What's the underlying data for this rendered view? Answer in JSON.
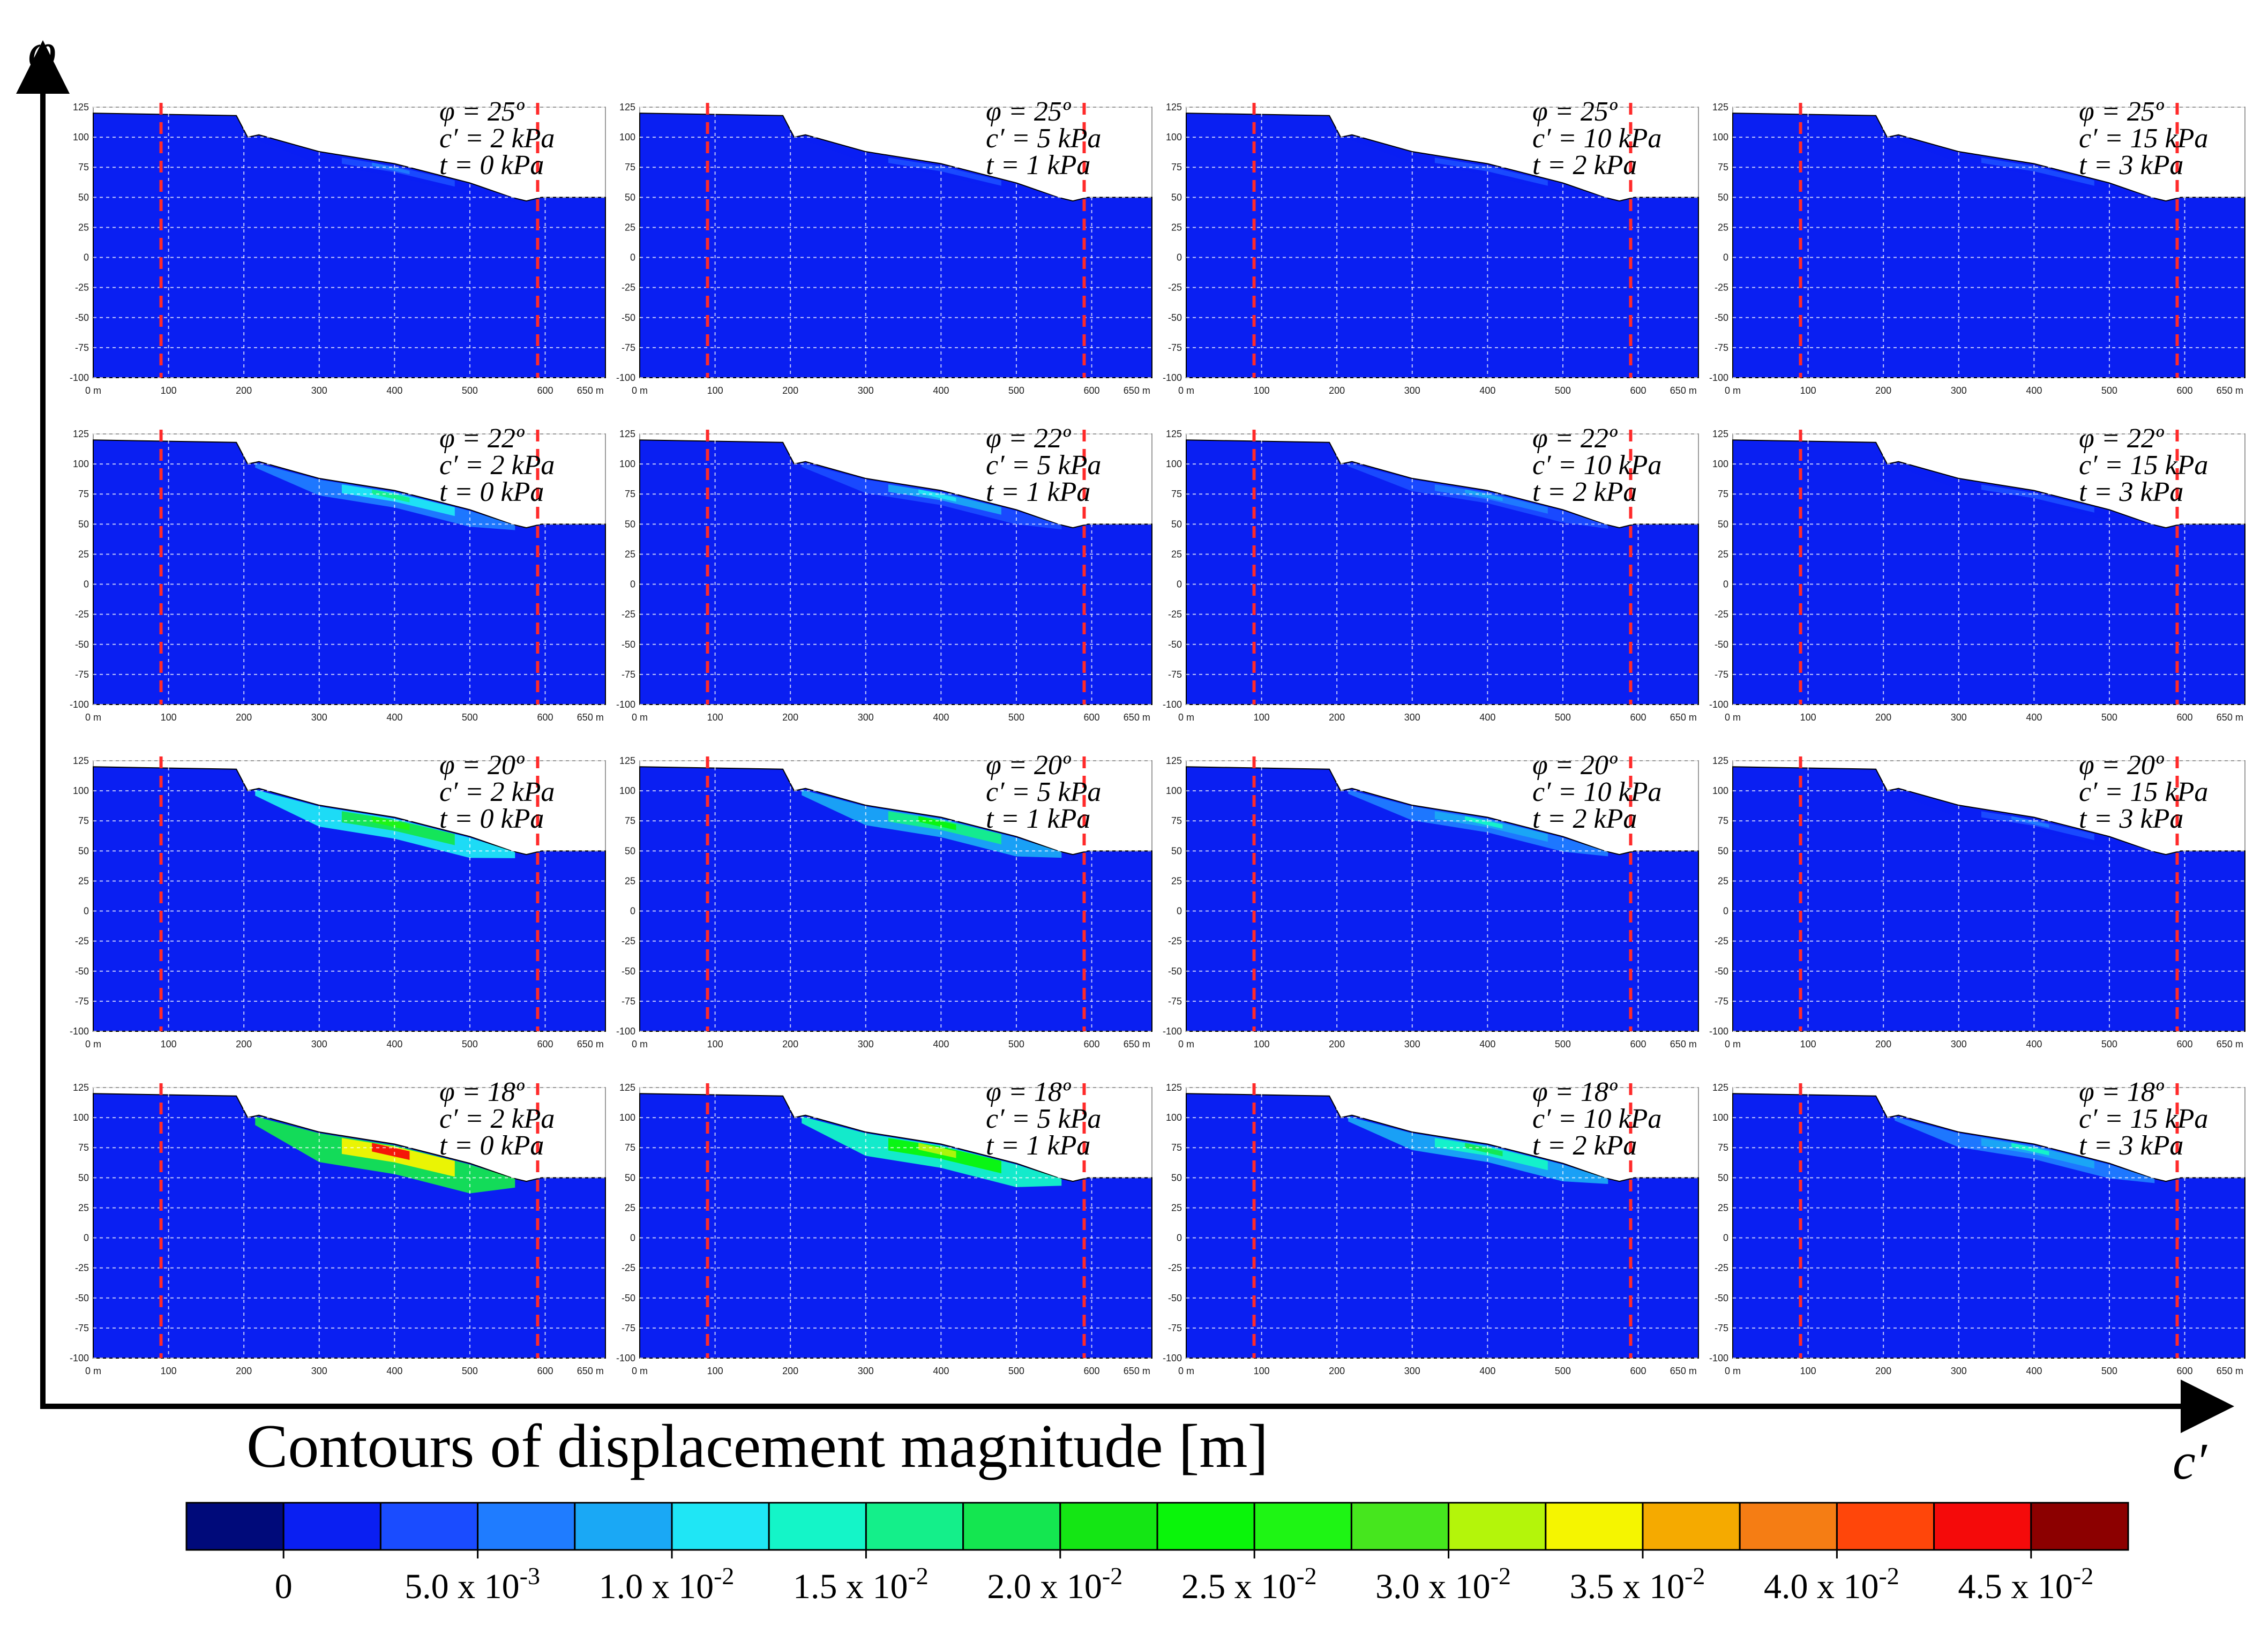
{
  "chart_data": {
    "type": "heatmap",
    "title": "Contours of displacement magnitude [m]",
    "x_axis_label": "c′",
    "y_axis_label": "φ",
    "panel_y_ticks": [
      "125",
      "100",
      "75",
      "50",
      "25",
      "0",
      "-25",
      "-50",
      "-75",
      "-100"
    ],
    "panel_x_ticks": [
      "0 m",
      "100",
      "200",
      "300",
      "400",
      "500",
      "600",
      "650 m"
    ],
    "panel_y_range": [
      -100,
      125
    ],
    "panel_x_range": [
      0,
      680
    ],
    "boundary_x": [
      90,
      590
    ],
    "rows": [
      {
        "phi_label": "φ = 25º"
      },
      {
        "phi_label": "φ = 22º"
      },
      {
        "phi_label": "φ = 20º"
      },
      {
        "phi_label": "φ = 18º"
      }
    ],
    "columns": [
      {
        "c_label": "c′ = 2 kPa",
        "t_label": "t  = 0 kPa"
      },
      {
        "c_label": "c′ = 5 kPa",
        "t_label": "t  = 1 kPa"
      },
      {
        "c_label": "c′ = 10 kPa",
        "t_label": "t  = 2 kPa"
      },
      {
        "c_label": "c′ = 15 kPa",
        "t_label": "t  = 3 kPa"
      }
    ],
    "max_displacement_m": [
      [
        0.008,
        0.005,
        0.005,
        0.005
      ],
      [
        0.018,
        0.013,
        0.009,
        0.005
      ],
      [
        0.027,
        0.024,
        0.014,
        0.008
      ],
      [
        0.045,
        0.032,
        0.02,
        0.014
      ]
    ],
    "colorbar": {
      "colors": [
        "#000a7a",
        "#0a1ff2",
        "#1a4cff",
        "#1f7cff",
        "#1aa8f5",
        "#1fe6f5",
        "#14f5c8",
        "#14ef8a",
        "#14e650",
        "#14e614",
        "#0af50a",
        "#1ef514",
        "#46e61e",
        "#b4f50a",
        "#f5f500",
        "#f5aa00",
        "#f57d14",
        "#ff460a",
        "#f50a0a",
        "#8c0000"
      ],
      "tick_labels": [
        {
          "base": "0",
          "exp": ""
        },
        {
          "base": "5.0 x 10",
          "exp": "-3"
        },
        {
          "base": "1.0 x 10",
          "exp": "-2"
        },
        {
          "base": "1.5 x 10",
          "exp": "-2"
        },
        {
          "base": "2.0 x 10",
          "exp": "-2"
        },
        {
          "base": "2.5 x 10",
          "exp": "-2"
        },
        {
          "base": "3.0 x 10",
          "exp": "-2"
        },
        {
          "base": "3.5 x 10",
          "exp": "-2"
        },
        {
          "base": "4.0 x 10",
          "exp": "-2"
        },
        {
          "base": "4.5 x 10",
          "exp": "-2"
        }
      ]
    }
  }
}
